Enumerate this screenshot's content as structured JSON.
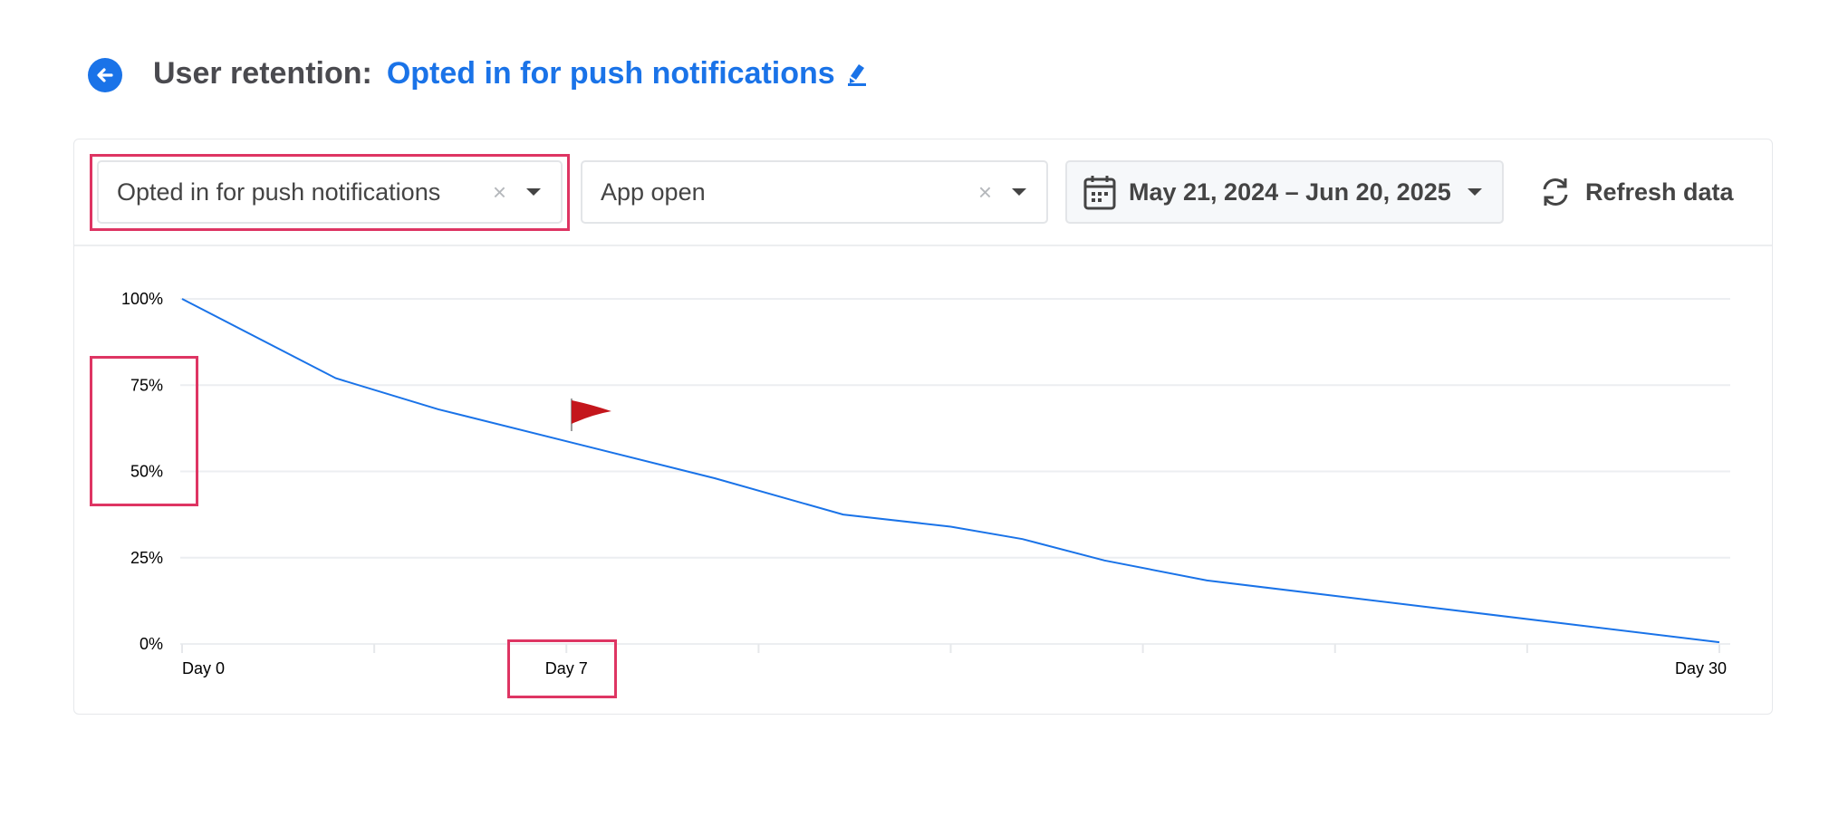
{
  "header": {
    "back_icon": "arrow-left-circle-icon",
    "label": "User retention:",
    "value": "Opted in for push notifications",
    "edit_icon": "pencil-icon"
  },
  "toolbar": {
    "start_event": {
      "value": "Opted in for push notifications",
      "clear": "×"
    },
    "return_event": {
      "value": "App open",
      "clear": "×"
    },
    "date_range": {
      "value": "May 21, 2024 – Jun 20, 2025",
      "icon": "calendar-icon"
    },
    "refresh": {
      "label": "Refresh data",
      "icon": "refresh-icon"
    }
  },
  "colors": {
    "accent": "#1a73e8",
    "highlight": "#de3563",
    "line": "#1a73e8"
  },
  "chart_data": {
    "type": "line",
    "x_unit": "day",
    "xlim": [
      0,
      30
    ],
    "ylim": [
      0,
      100
    ],
    "y_ticks": [
      "0%",
      "25%",
      "50%",
      "75%",
      "100%"
    ],
    "x_tick_labels": [
      {
        "label": "Day 0",
        "tick": 0
      },
      {
        "label": "Day 7",
        "tick": 2
      },
      {
        "label": "Day 30",
        "tick": 8
      }
    ],
    "grid": true,
    "series": [
      {
        "x": [
          0,
          3,
          5,
          10.4,
          12.9,
          15,
          16.4,
          18,
          20,
          30
        ],
        "y": [
          100,
          77,
          68,
          48,
          37.5,
          34,
          30.4,
          24.2,
          18.4,
          0.5
        ]
      }
    ],
    "annotations": [
      {
        "type": "flag-icon",
        "day": 7.6
      }
    ]
  }
}
